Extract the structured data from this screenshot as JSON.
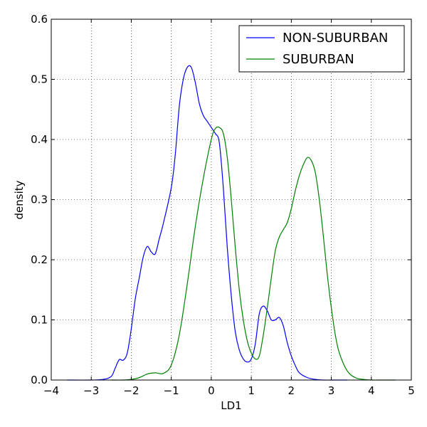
{
  "chart_data": {
    "type": "line",
    "title": "",
    "xlabel": "LD1",
    "ylabel": "density",
    "xlim": [
      -4,
      5
    ],
    "ylim": [
      0,
      0.6
    ],
    "xticks": [
      -4,
      -3,
      -2,
      -1,
      0,
      1,
      2,
      3,
      4,
      5
    ],
    "yticks": [
      0.0,
      0.1,
      0.2,
      0.3,
      0.4,
      0.5,
      0.6
    ],
    "xtick_labels": [
      "−4",
      "−3",
      "−2",
      "−1",
      "0",
      "1",
      "2",
      "3",
      "4",
      "5"
    ],
    "ytick_labels": [
      "0.0",
      "0.1",
      "0.2",
      "0.3",
      "0.4",
      "0.5",
      "0.6"
    ],
    "grid": true,
    "legend_position": "top-right",
    "series": [
      {
        "name": "NON-SUBURBAN",
        "color": "#0000ff",
        "x": [
          -3.6,
          -3.0,
          -2.7,
          -2.5,
          -2.4,
          -2.3,
          -2.2,
          -2.1,
          -2.0,
          -1.9,
          -1.8,
          -1.7,
          -1.6,
          -1.5,
          -1.4,
          -1.3,
          -1.2,
          -1.0,
          -0.9,
          -0.8,
          -0.7,
          -0.6,
          -0.5,
          -0.4,
          -0.3,
          -0.2,
          -0.1,
          0.0,
          0.1,
          0.2,
          0.3,
          0.4,
          0.5,
          0.6,
          0.7,
          0.8,
          0.9,
          1.0,
          1.1,
          1.2,
          1.3,
          1.4,
          1.5,
          1.6,
          1.7,
          1.8,
          1.9,
          2.0,
          2.1,
          2.2,
          2.4,
          2.6,
          2.8,
          3.0,
          3.4
        ],
        "y": [
          0.0,
          0.0,
          0.001,
          0.006,
          0.02,
          0.034,
          0.033,
          0.045,
          0.085,
          0.135,
          0.17,
          0.205,
          0.222,
          0.213,
          0.21,
          0.235,
          0.26,
          0.32,
          0.375,
          0.455,
          0.5,
          0.52,
          0.52,
          0.495,
          0.46,
          0.44,
          0.43,
          0.42,
          0.41,
          0.395,
          0.32,
          0.22,
          0.14,
          0.08,
          0.05,
          0.035,
          0.03,
          0.035,
          0.06,
          0.11,
          0.123,
          0.115,
          0.1,
          0.1,
          0.104,
          0.09,
          0.062,
          0.04,
          0.024,
          0.012,
          0.004,
          0.001,
          0.0,
          0.0,
          0.0
        ]
      },
      {
        "name": "SUBURBAN",
        "color": "#008000",
        "x": [
          -2.5,
          -2.2,
          -2.0,
          -1.8,
          -1.6,
          -1.4,
          -1.2,
          -1.0,
          -0.8,
          -0.6,
          -0.4,
          -0.2,
          0.0,
          0.1,
          0.2,
          0.3,
          0.4,
          0.5,
          0.6,
          0.7,
          0.8,
          0.9,
          1.0,
          1.1,
          1.2,
          1.3,
          1.4,
          1.5,
          1.6,
          1.7,
          1.8,
          1.9,
          2.0,
          2.1,
          2.2,
          2.3,
          2.4,
          2.5,
          2.6,
          2.7,
          2.8,
          2.9,
          3.0,
          3.1,
          3.2,
          3.4,
          3.6,
          3.8,
          4.0,
          4.3,
          4.6
        ],
        "y": [
          0.0,
          0.0,
          0.001,
          0.004,
          0.01,
          0.012,
          0.011,
          0.025,
          0.075,
          0.16,
          0.255,
          0.335,
          0.4,
          0.418,
          0.42,
          0.41,
          0.37,
          0.3,
          0.22,
          0.15,
          0.1,
          0.065,
          0.045,
          0.035,
          0.04,
          0.075,
          0.12,
          0.17,
          0.215,
          0.238,
          0.25,
          0.262,
          0.285,
          0.315,
          0.34,
          0.358,
          0.37,
          0.365,
          0.345,
          0.3,
          0.24,
          0.175,
          0.12,
          0.075,
          0.045,
          0.015,
          0.004,
          0.001,
          0.0,
          0.0,
          0.0
        ]
      }
    ]
  }
}
